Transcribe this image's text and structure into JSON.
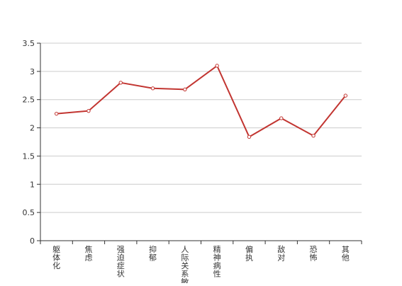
{
  "chart_data": {
    "type": "line",
    "categories": [
      "躯体化",
      "焦虑",
      "强迫症状",
      "抑郁",
      "人际关系敏感",
      "精神病性",
      "偏执",
      "敌对",
      "恐怖",
      "其他"
    ],
    "series": [
      {
        "values": [
          2.25,
          2.3,
          2.8,
          2.7,
          2.68,
          3.1,
          1.84,
          2.17,
          1.86,
          2.57
        ],
        "color": "#c23531"
      }
    ],
    "yticks": [
      "0",
      "0.5",
      "1",
      "1.5",
      "2",
      "2.5",
      "3",
      "3.5"
    ],
    "ylim": [
      0,
      3.5
    ],
    "grid": true,
    "legend": "none"
  }
}
